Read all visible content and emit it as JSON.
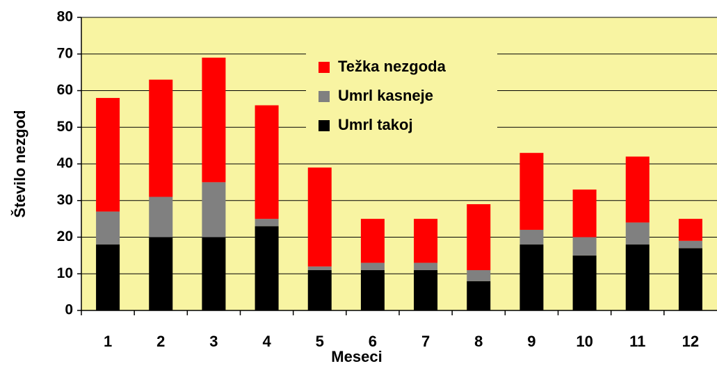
{
  "chart_data": {
    "type": "bar",
    "stacked": true,
    "x_label": "Meseci",
    "y_label": "Število nezgod",
    "categories": [
      "1",
      "2",
      "3",
      "4",
      "5",
      "6",
      "7",
      "8",
      "9",
      "10",
      "11",
      "12"
    ],
    "series": [
      {
        "name": "Umrl takoj",
        "color": "#000000",
        "values": [
          18,
          20,
          20,
          23,
          11,
          11,
          11,
          8,
          18,
          15,
          18,
          17
        ]
      },
      {
        "name": "Umrl kasneje",
        "color": "#808080",
        "values": [
          9,
          11,
          15,
          2,
          1,
          2,
          2,
          3,
          4,
          5,
          6,
          2
        ]
      },
      {
        "name": "Težka nezgoda",
        "color": "#ff0000",
        "values": [
          31,
          32,
          34,
          31,
          27,
          12,
          12,
          18,
          21,
          13,
          18,
          6
        ]
      }
    ],
    "ylim": [
      0,
      80
    ],
    "yticks": [
      0,
      10,
      20,
      30,
      40,
      50,
      60,
      70,
      80
    ],
    "grid": true,
    "plot_background": "#f8f4a2",
    "legend": "top-center"
  }
}
